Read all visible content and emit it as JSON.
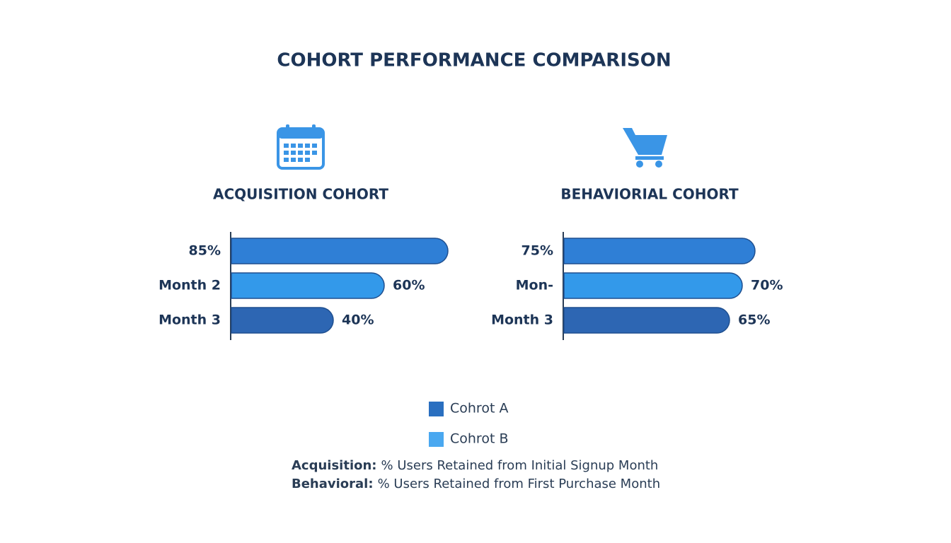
{
  "title": "COHORT PERFORMANCE COMPARISON",
  "chart_data": [
    {
      "type": "bar",
      "title": "ACQUISITION COHORT",
      "categories": [
        null,
        "Month 2",
        "Month 3"
      ],
      "values": [
        85,
        60,
        40
      ],
      "value_labels": [
        "85%",
        "60%",
        "40%"
      ],
      "colors": [
        "#2f7fd6",
        "#3399ea",
        "#2d66b3"
      ]
    },
    {
      "type": "bar",
      "title": "BEHAVIORIAL COHORT",
      "categories": [
        null,
        "Mon-",
        "Month 3"
      ],
      "values": [
        75,
        70,
        65
      ],
      "value_labels": [
        "75%",
        "70%",
        "65%"
      ],
      "colors": [
        "#2f7fd6",
        "#3399ea",
        "#2d66b3"
      ]
    }
  ],
  "legend": [
    {
      "name": "Cohrot A",
      "color": "#2a6fc0"
    },
    {
      "name": "Cohrot B",
      "color": "#4aa8f0"
    }
  ],
  "notes": [
    {
      "label": "Acquisition:",
      "text": "% Users Retained from Initial Signup Month"
    },
    {
      "label": "Behavioral:",
      "text": "% Users Retained from First Purchase Month"
    }
  ]
}
